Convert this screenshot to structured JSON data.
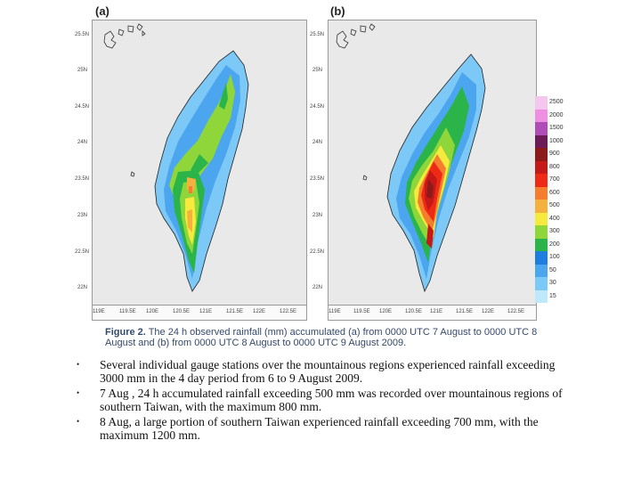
{
  "panel_a": {
    "label": "(a)",
    "y_ticks": [
      "25.5N",
      "25N",
      "24.5N",
      "24N",
      "23.5N",
      "23N",
      "22.5N",
      "22N"
    ],
    "x_ticks": [
      "119E",
      "119.5E",
      "120E",
      "120.5E",
      "121E",
      "121.5E",
      "122E",
      "122.5E"
    ]
  },
  "panel_b": {
    "label": "(b)",
    "y_ticks": [
      "25.5N",
      "25N",
      "24.5N",
      "24N",
      "23.5N",
      "23N",
      "22.5N",
      "22N"
    ],
    "x_ticks": [
      "119E",
      "119.5E",
      "120E",
      "120.5E",
      "121E",
      "121.5E",
      "122E",
      "122.5E"
    ]
  },
  "legend": {
    "levels": [
      {
        "label": "2500",
        "color": "#f6c7ee"
      },
      {
        "label": "2000",
        "color": "#ef8fe2"
      },
      {
        "label": "1500",
        "color": "#b04cb8"
      },
      {
        "label": "1000",
        "color": "#6e1a56"
      },
      {
        "label": "900",
        "color": "#8d1a1a"
      },
      {
        "label": "800",
        "color": "#c51818"
      },
      {
        "label": "700",
        "color": "#ee2a16"
      },
      {
        "label": "600",
        "color": "#f47d2e"
      },
      {
        "label": "500",
        "color": "#f5b13d"
      },
      {
        "label": "400",
        "color": "#f6ea3e"
      },
      {
        "label": "300",
        "color": "#8fd63a"
      },
      {
        "label": "200",
        "color": "#2bb44a"
      },
      {
        "label": "100",
        "color": "#1e7ee0"
      },
      {
        "label": "50",
        "color": "#4ba6ef"
      },
      {
        "label": "30",
        "color": "#7cc8f6"
      },
      {
        "label": "15",
        "color": "#bfe8fb"
      }
    ]
  },
  "caption": {
    "figure_label": "Figure 2.",
    "text": "The 24 h observed rainfall (mm) accumulated (a) from 0000 UTC 7 August to 0000 UTC 8 August and (b) from 0000 UTC 8 August to 0000 UTC 9 August 2009."
  },
  "bullets": [
    "Several individual gauge stations over the mountainous regions experienced rainfall exceeding 3000 mm in the 4 day period from 6 to 9 August 2009.",
    "7 Aug , 24 h accumulated rainfall exceeding 500 mm was recorded over mountainous regions of southern Taiwan, with the maximum 800 mm.",
    "8 Aug, a large portion of southern Taiwan experienced rainfall exceeding 700 mm, with the maximum 1200 mm."
  ],
  "bullet_symbol": "•"
}
